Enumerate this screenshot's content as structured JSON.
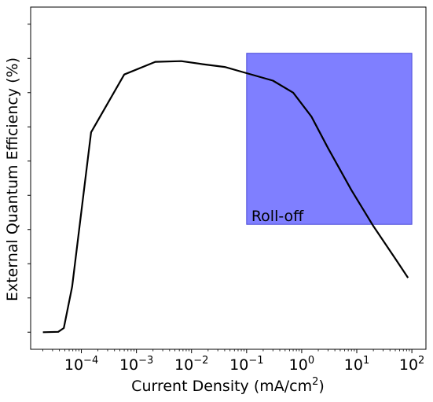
{
  "chart_data": {
    "type": "line",
    "title": "",
    "xlabel": "Current Density (mA/cm",
    "xlabel_sup": "2",
    "xlabel_suffix": ")",
    "ylabel": "External Quantum Efficiency (%)",
    "x_scale": "log",
    "xlim": [
      1.2e-05,
      180
    ],
    "ylim": [
      0,
      100
    ],
    "y_tick_values": [
      5,
      15,
      25,
      35,
      45,
      55,
      65,
      75,
      85,
      95
    ],
    "y_tick_labels_shown": false,
    "x_ticks": [
      {
        "value": 0.0001,
        "base": "10",
        "exp": "−4"
      },
      {
        "value": 0.001,
        "base": "10",
        "exp": "−3"
      },
      {
        "value": 0.01,
        "base": "10",
        "exp": "−2"
      },
      {
        "value": 0.1,
        "base": "10",
        "exp": "−1"
      },
      {
        "value": 1,
        "base": "10",
        "exp": "0"
      },
      {
        "value": 10,
        "base": "10",
        "exp": "1"
      },
      {
        "value": 100,
        "base": "10",
        "exp": "2"
      }
    ],
    "series": [
      {
        "color": "#000000",
        "x": [
          2e-05,
          3.8e-05,
          4.8e-05,
          6.8e-05,
          0.00015,
          0.0006,
          0.0022,
          0.0065,
          0.016,
          0.04,
          0.1,
          0.3,
          0.7,
          1.5,
          3,
          8,
          20,
          50,
          85
        ],
        "y": [
          5.0,
          5.1,
          6.2,
          18.3,
          63.4,
          80.3,
          84.0,
          84.2,
          83.3,
          82.5,
          80.7,
          78.5,
          75.0,
          68.0,
          58.8,
          46.5,
          36.0,
          26.5,
          20.9
        ]
      }
    ],
    "highlight": {
      "label": "Roll-off",
      "color": "#7f7fff",
      "x_range": [
        0.1,
        100
      ],
      "y_range": [
        36.5,
        86.5
      ]
    },
    "grid": false,
    "legend": "none"
  }
}
